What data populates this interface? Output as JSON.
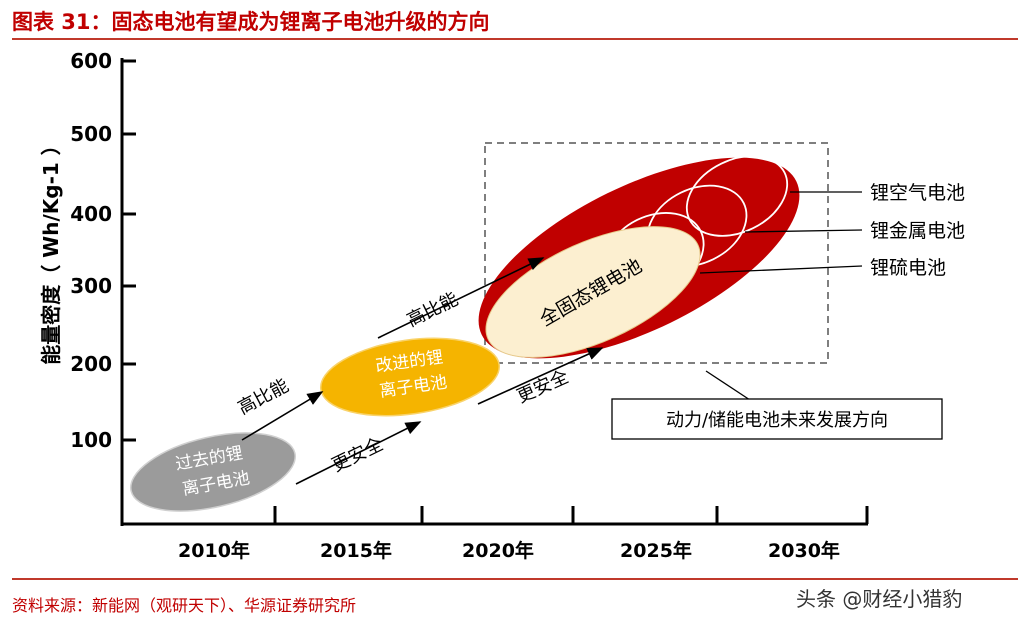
{
  "figure_title": "图表 31：固态电池有望成为锂离子电池升级的方向",
  "source": "资料来源：新能网（观研天下）、华源证券研究所",
  "watermark": "头条 @财经小猎豹",
  "colors": {
    "accent": "#c00000",
    "past": "#9b9b9b",
    "improved": "#f5b400",
    "future_outer": "#c00000",
    "solid_state": "#fcefd0"
  },
  "chart_data": {
    "type": "diagram-timeline",
    "ylabel": "能量密度（ Wh/Kg-1 ）",
    "ylim": [
      0,
      600
    ],
    "yticks": [
      100,
      200,
      300,
      400,
      500,
      600
    ],
    "xticks": [
      "2010年",
      "2015年",
      "2020年",
      "2025年",
      "2030年"
    ],
    "stages": [
      {
        "label": "过去的锂\n离子电池",
        "line1": "过去的锂",
        "line2": "离子电池"
      },
      {
        "label": "改进的锂\n离子电池",
        "line1": "改进的锂",
        "line2": "离子电池"
      },
      {
        "label": "全固态锂电池"
      }
    ],
    "arrow_labels": {
      "upper": "高比能",
      "lower": "更安全"
    },
    "future_types": [
      "锂空气电池",
      "锂金属电池",
      "锂硫电池"
    ],
    "future_box_label": "动力/储能电池未来发展方向"
  }
}
